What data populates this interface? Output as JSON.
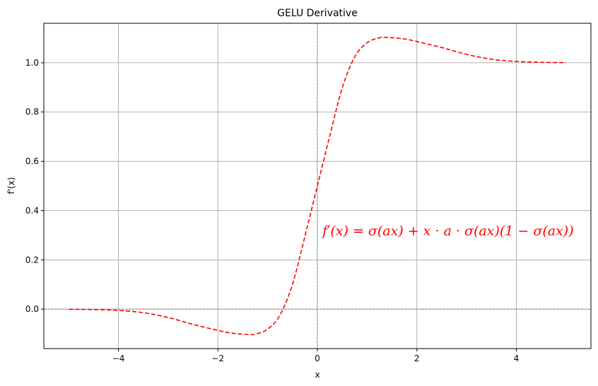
{
  "chart_data": {
    "type": "line",
    "title": "GELU Derivative",
    "xlabel": "x",
    "ylabel": "f'(x)",
    "xlim": [
      -5.5,
      5.5
    ],
    "ylim": [
      -0.16,
      1.16
    ],
    "xticks": [
      -4,
      -2,
      0,
      2,
      4
    ],
    "xtick_labels": [
      "−4",
      "−2",
      "0",
      "2",
      "4"
    ],
    "yticks": [
      0.0,
      0.2,
      0.4,
      0.6,
      0.8,
      1.0
    ],
    "ytick_labels": [
      "0.0",
      "0.2",
      "0.4",
      "0.6",
      "0.8",
      "1.0"
    ],
    "grid": true,
    "reference_lines": {
      "horizontal": 0,
      "vertical": 0,
      "style": "dashed",
      "color": "#808080"
    },
    "annotation": {
      "text": "f′(x) = σ(ax) + x · a · σ(ax)(1 − σ(ax))",
      "x": 0.1,
      "y": 0.3,
      "color": "#ff0000"
    },
    "series": [
      {
        "line_style": "dashed",
        "color": "#ff0000",
        "x": [
          -5.0,
          -4.5,
          -4.0,
          -3.5,
          -3.0,
          -2.5,
          -2.0,
          -1.75,
          -1.5,
          -1.35,
          -1.25,
          -1.0,
          -0.75,
          -0.5,
          -0.25,
          0.0,
          0.25,
          0.5,
          0.75,
          1.0,
          1.25,
          1.35,
          1.5,
          1.75,
          2.0,
          2.5,
          3.0,
          3.5,
          4.0,
          4.5,
          5.0
        ],
        "y": [
          -0.0005,
          -0.0017,
          -0.0051,
          -0.0143,
          -0.0338,
          -0.0617,
          -0.0861,
          -0.0965,
          -0.1016,
          -0.1027,
          -0.1014,
          -0.0813,
          -0.0232,
          0.1013,
          0.2964,
          0.5,
          0.7036,
          0.8987,
          1.0232,
          1.0813,
          1.1014,
          1.1027,
          1.1016,
          1.0965,
          1.0861,
          1.0617,
          1.0338,
          1.0143,
          1.0051,
          1.0017,
          1.0005
        ]
      }
    ]
  }
}
